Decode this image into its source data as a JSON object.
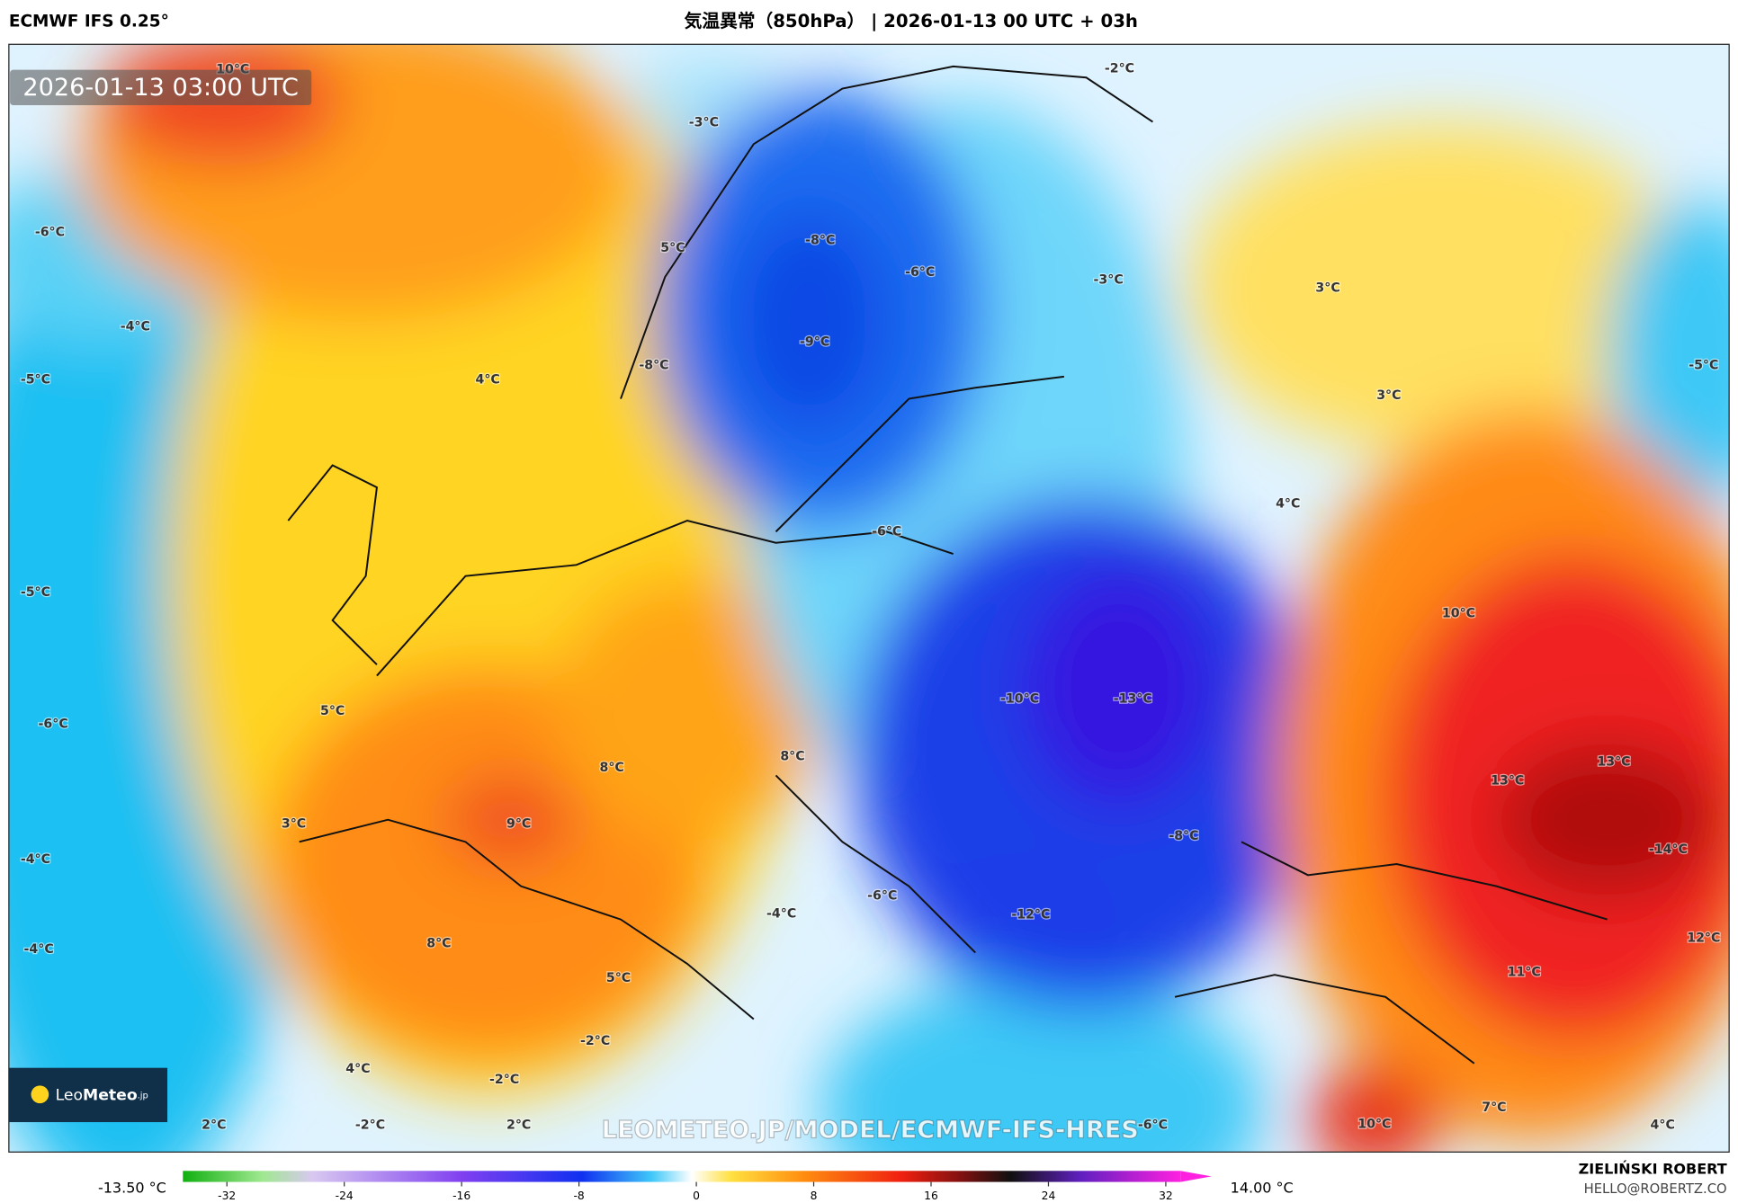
{
  "header": {
    "model": "ECMWF IFS 0.25°",
    "title": "気温異常（850hPa） | 2026-01-13 00 UTC + 03h"
  },
  "timestamp": "2026-01-13 03:00 UTC",
  "watermark": "LEOMETEO.JP/MODEL/ECMWF-IFS-HRES",
  "logo": {
    "prefix": "Leo",
    "name": "Meteo",
    "suffix": ".jp"
  },
  "map": {
    "labels": [
      "10°C",
      "-2°C",
      "-3°C",
      "-6°C",
      "-8°C",
      "-6°C",
      "5°C",
      "-3°C",
      "3°C",
      "-4°C",
      "-9°C",
      "-8°C",
      "4°C",
      "-5°C",
      "-5°C",
      "3°C",
      "4°C",
      "-6°C",
      "-5°C",
      "10°C",
      "5°C",
      "-10°C",
      "-13°C",
      "-6°C",
      "8°C",
      "8°C",
      "13°C",
      "13°C",
      "3°C",
      "9°C",
      "-8°C",
      "-14°C",
      "-4°C",
      "-6°C",
      "-4°C",
      "-12°C",
      "12°C",
      "-4°C",
      "8°C",
      "11°C",
      "5°C",
      "-2°C",
      "4°C",
      "-2°C",
      "2°C",
      "-2°C",
      "2°C",
      "-6°C",
      "10°C",
      "7°C",
      "4°C"
    ]
  },
  "colorbar": {
    "min_label": "-13.50 °C",
    "max_label": "14.00 °C",
    "range": [
      -35,
      33
    ],
    "ticks": [
      -32,
      -24,
      -16,
      -8,
      0,
      8,
      16,
      24,
      32
    ]
  },
  "credits": {
    "author": "ZIELIŃSKI ROBERT",
    "contact": "HELLO@ROBERTZ.CO"
  }
}
